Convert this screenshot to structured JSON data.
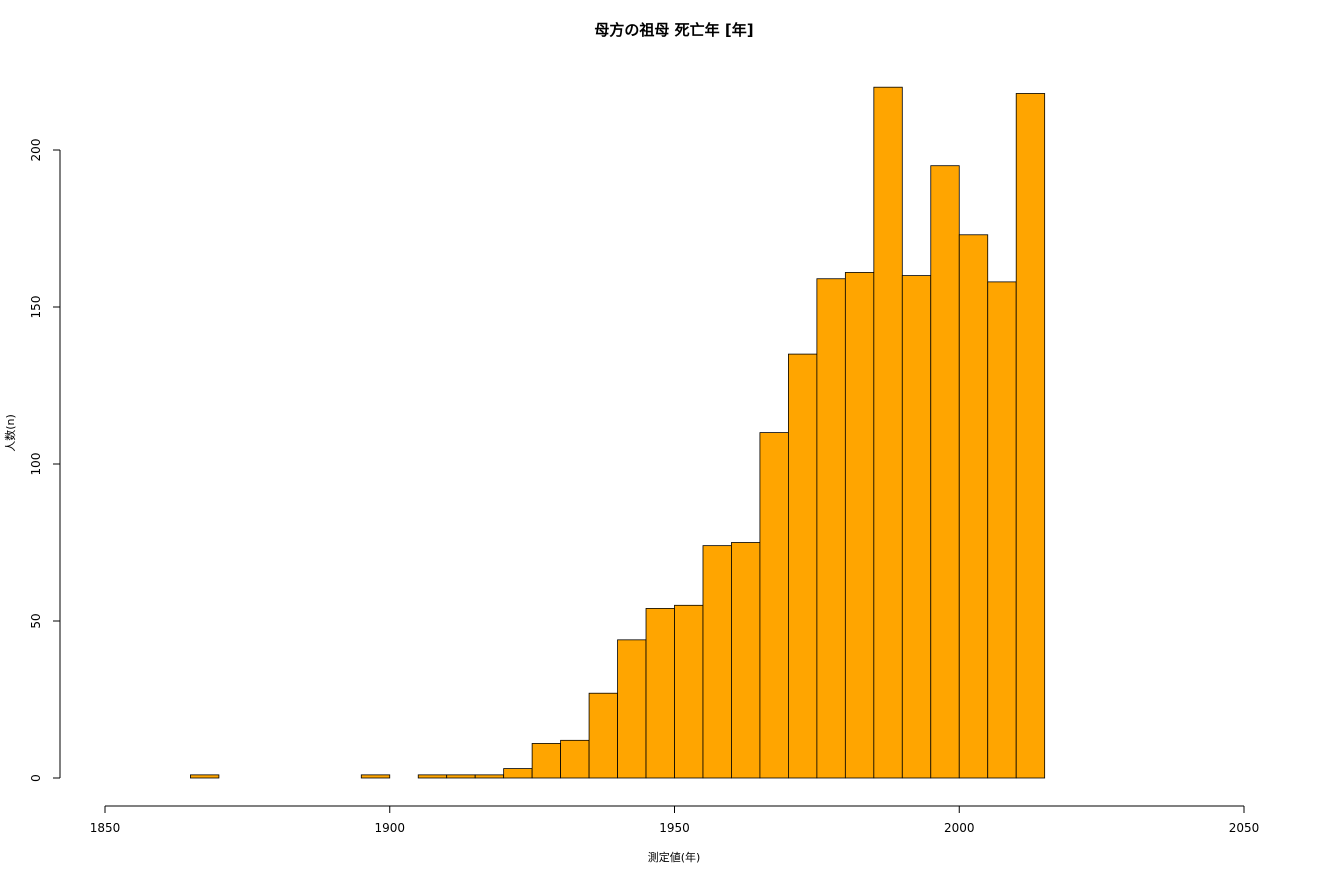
{
  "chart_data": {
    "type": "bar",
    "title": "母方の祖母 死亡年 [年]",
    "xlabel": "測定値(年)",
    "ylabel": "人数(n)",
    "bar_color": "#FFA500",
    "border_color": "#000000",
    "xlim": [
      1850,
      2050
    ],
    "ylim": [
      0,
      220
    ],
    "x_ticks": [
      1850,
      1900,
      1950,
      2000,
      2050
    ],
    "y_ticks": [
      0,
      50,
      100,
      150,
      200
    ],
    "grid": false,
    "legend": "none",
    "bins": [
      {
        "start": 1865,
        "end": 1870,
        "count": 1
      },
      {
        "start": 1870,
        "end": 1875,
        "count": 0
      },
      {
        "start": 1875,
        "end": 1880,
        "count": 0
      },
      {
        "start": 1880,
        "end": 1885,
        "count": 0
      },
      {
        "start": 1885,
        "end": 1890,
        "count": 0
      },
      {
        "start": 1890,
        "end": 1895,
        "count": 0
      },
      {
        "start": 1895,
        "end": 1900,
        "count": 1
      },
      {
        "start": 1900,
        "end": 1905,
        "count": 0
      },
      {
        "start": 1905,
        "end": 1910,
        "count": 1
      },
      {
        "start": 1910,
        "end": 1915,
        "count": 1
      },
      {
        "start": 1915,
        "end": 1920,
        "count": 1
      },
      {
        "start": 1920,
        "end": 1925,
        "count": 3
      },
      {
        "start": 1925,
        "end": 1930,
        "count": 11
      },
      {
        "start": 1930,
        "end": 1935,
        "count": 12
      },
      {
        "start": 1935,
        "end": 1940,
        "count": 27
      },
      {
        "start": 1940,
        "end": 1945,
        "count": 44
      },
      {
        "start": 1945,
        "end": 1950,
        "count": 54
      },
      {
        "start": 1950,
        "end": 1955,
        "count": 55
      },
      {
        "start": 1955,
        "end": 1960,
        "count": 74
      },
      {
        "start": 1960,
        "end": 1965,
        "count": 75
      },
      {
        "start": 1965,
        "end": 1970,
        "count": 110
      },
      {
        "start": 1970,
        "end": 1975,
        "count": 135
      },
      {
        "start": 1975,
        "end": 1980,
        "count": 159
      },
      {
        "start": 1980,
        "end": 1985,
        "count": 161
      },
      {
        "start": 1985,
        "end": 1990,
        "count": 220
      },
      {
        "start": 1990,
        "end": 1995,
        "count": 160
      },
      {
        "start": 1995,
        "end": 2000,
        "count": 195
      },
      {
        "start": 2000,
        "end": 2005,
        "count": 173
      },
      {
        "start": 2005,
        "end": 2010,
        "count": 158
      },
      {
        "start": 2010,
        "end": 2015,
        "count": 218
      }
    ]
  }
}
